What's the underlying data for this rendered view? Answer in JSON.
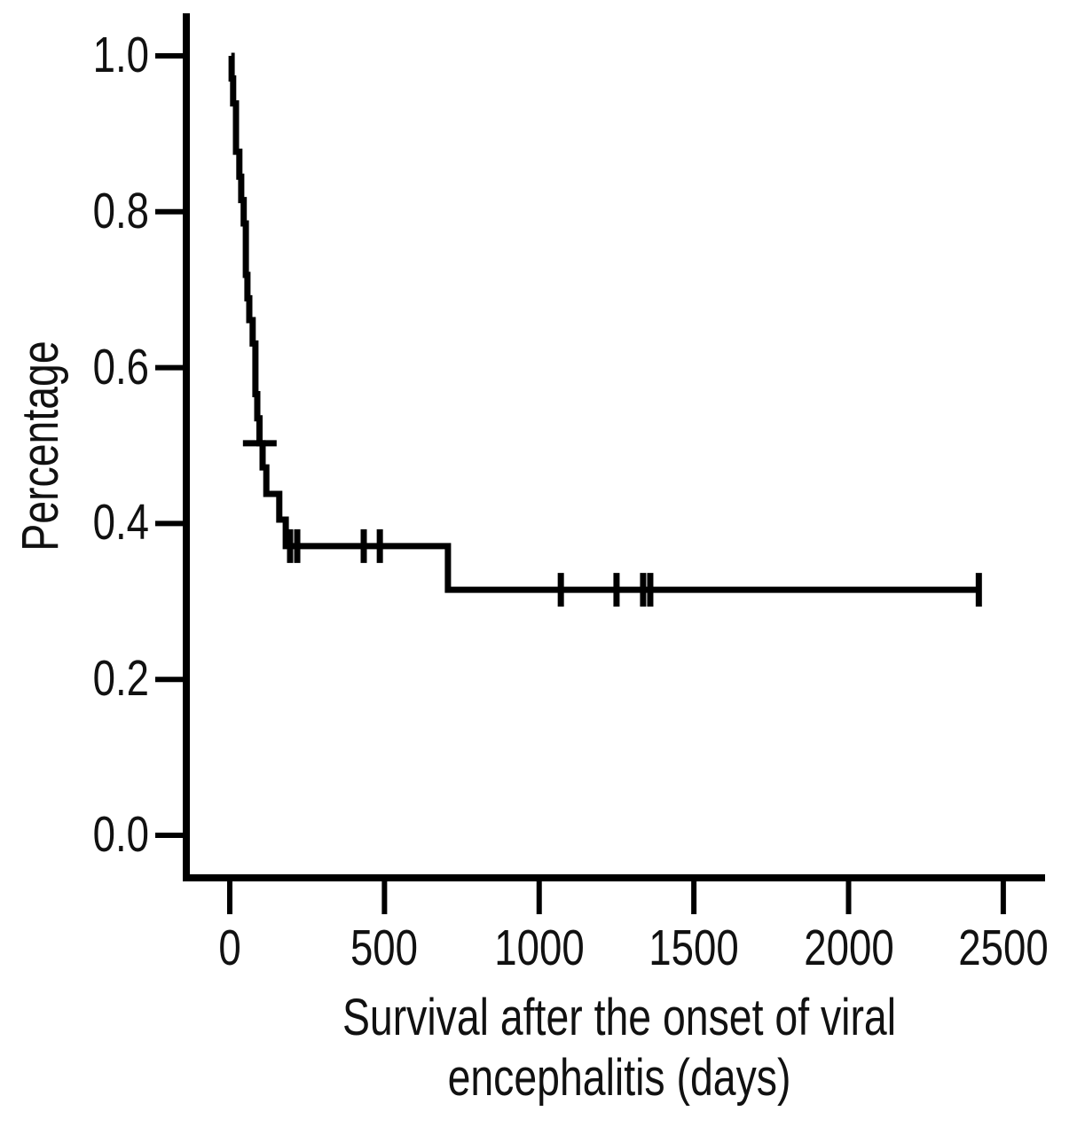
{
  "figure": {
    "background": "#ffffff",
    "line_color": "#000000",
    "text_color": "#111111"
  },
  "chart_data": {
    "type": "line",
    "subtype": "kaplan-meier-step",
    "title": "",
    "xlabel": "Survival after the onset of viral encephalitis (days)",
    "xlabel_lines": [
      "Survival after the onset of viral",
      "encephalitis (days)"
    ],
    "ylabel": "Percentage",
    "xticks": [
      0,
      500,
      1000,
      1500,
      2000,
      2500
    ],
    "yticks": [
      1.0,
      0.8,
      0.6,
      0.4,
      0.2,
      0.0
    ],
    "ytick_labels": [
      "1.0",
      "0.8",
      "0.6",
      "0.4",
      "0.2",
      "0.0"
    ],
    "xlim": [
      -140,
      2660
    ],
    "ylim": [
      -0.054,
      1.055
    ],
    "grid": false,
    "legend": false,
    "series": [
      {
        "name": "overall-survival",
        "start": [
          5,
          1.0
        ],
        "steps": [
          [
            6,
            0.971
          ],
          [
            11,
            0.939
          ],
          [
            20,
            0.877
          ],
          [
            31,
            0.845
          ],
          [
            37,
            0.815
          ],
          [
            45,
            0.785
          ],
          [
            52,
            0.719
          ],
          [
            57,
            0.689
          ],
          [
            63,
            0.661
          ],
          [
            74,
            0.631
          ],
          [
            83,
            0.566
          ],
          [
            89,
            0.535
          ],
          [
            96,
            0.503
          ],
          [
            106,
            0.472
          ],
          [
            118,
            0.438
          ],
          [
            160,
            0.405
          ],
          [
            181,
            0.371
          ],
          [
            705,
            0.315
          ]
        ],
        "end": [
          2421,
          0.315
        ]
      }
    ],
    "censor_marks": [
      {
        "t": 97,
        "s": 0.503,
        "orient": "h"
      },
      {
        "t": 195,
        "s": 0.371,
        "orient": "v"
      },
      {
        "t": 218,
        "s": 0.371,
        "orient": "v"
      },
      {
        "t": 433,
        "s": 0.371,
        "orient": "v"
      },
      {
        "t": 485,
        "s": 0.371,
        "orient": "v"
      },
      {
        "t": 1070,
        "s": 0.315,
        "orient": "v"
      },
      {
        "t": 1250,
        "s": 0.315,
        "orient": "v"
      },
      {
        "t": 1336,
        "s": 0.315,
        "orient": "v"
      },
      {
        "t": 1359,
        "s": 0.315,
        "orient": "v"
      },
      {
        "t": 2421,
        "s": 0.315,
        "orient": "v"
      }
    ]
  }
}
